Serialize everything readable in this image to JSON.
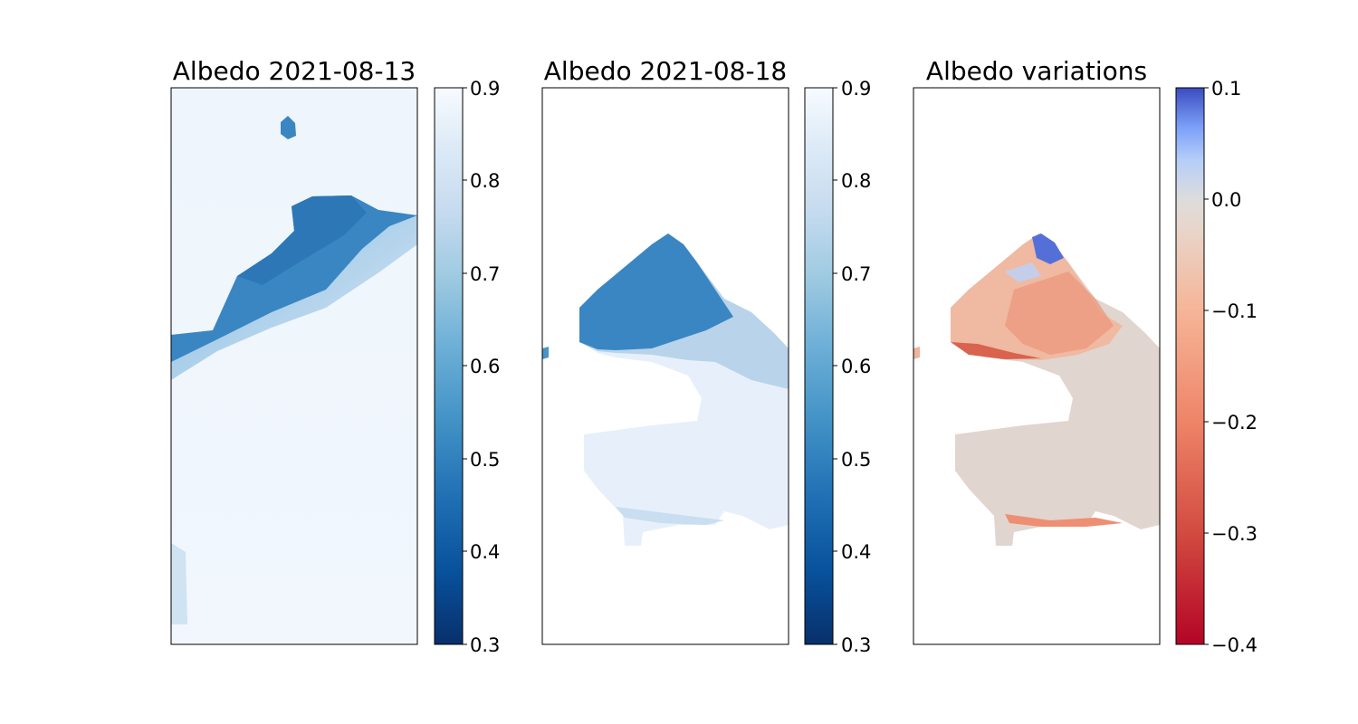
{
  "chart_data": [
    {
      "type": "heatmap",
      "title": "Albedo 2021-08-13",
      "colormap": "Blues_r",
      "colorbar": {
        "vmin": 0.3,
        "vmax": 0.9,
        "ticks": [
          "0.3",
          "0.4",
          "0.5",
          "0.6",
          "0.7",
          "0.8",
          "0.9"
        ]
      },
      "xticks": false,
      "yticks": false,
      "regions": [
        {
          "label": "dark upper band",
          "approx_value": 0.45
        },
        {
          "label": "transition zone",
          "approx_value": 0.7
        },
        {
          "label": "bright lower area",
          "approx_value": 0.87
        }
      ]
    },
    {
      "type": "heatmap",
      "title": "Albedo 2021-08-18",
      "colormap": "Blues_r",
      "colorbar": {
        "vmin": 0.3,
        "vmax": 0.9,
        "ticks": [
          "0.3",
          "0.4",
          "0.5",
          "0.6",
          "0.7",
          "0.8",
          "0.9"
        ]
      },
      "xticks": false,
      "yticks": false,
      "regions": [
        {
          "label": "dark upper lobe",
          "approx_value": 0.45
        },
        {
          "label": "transition zone",
          "approx_value": 0.7
        },
        {
          "label": "bright lower area",
          "approx_value": 0.86
        }
      ]
    },
    {
      "type": "heatmap",
      "title": "Albedo variations",
      "colormap": "coolwarm_r",
      "colorbar": {
        "vmin": -0.4,
        "vmax": 0.1,
        "ticks": [
          "−0.4",
          "−0.3",
          "−0.2",
          "−0.1",
          "0.0",
          "0.1"
        ]
      },
      "xticks": false,
      "yticks": false,
      "regions": [
        {
          "label": "northern tip gain",
          "approx_value": 0.08
        },
        {
          "label": "upper lobe loss",
          "approx_value": -0.15
        },
        {
          "label": "lower area",
          "approx_value": -0.04
        }
      ]
    }
  ],
  "colors": {
    "blues": [
      "#08306b",
      "#08519c",
      "#2171b5",
      "#4292c6",
      "#6baed6",
      "#9ecae1",
      "#c6dbef",
      "#deebf7",
      "#f7fbff"
    ],
    "coolwarm": [
      "#b40426",
      "#d24b40",
      "#ee8468",
      "#f6b597",
      "#e8d6cc",
      "#dddcdc",
      "#b5cef8",
      "#7b9ff9",
      "#3b4cc0"
    ]
  }
}
